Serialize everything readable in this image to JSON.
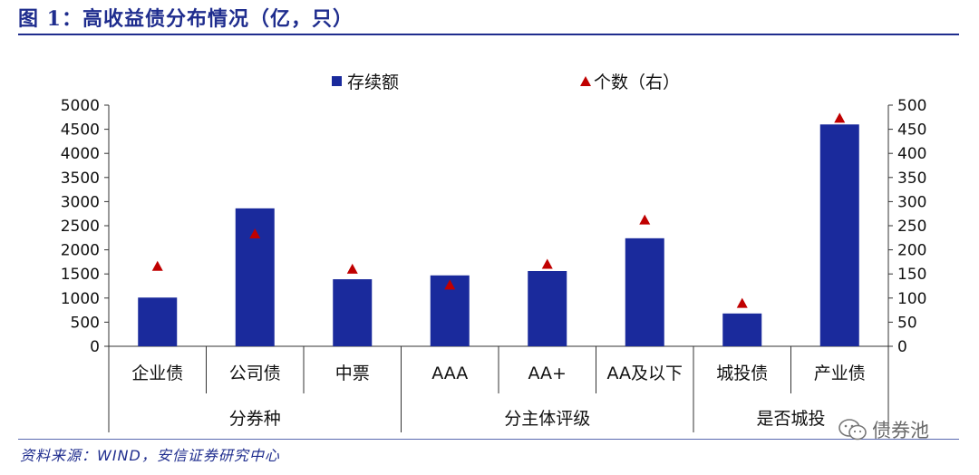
{
  "header": {
    "title": "图 1：高收益债分布情况（亿，只）"
  },
  "footer": {
    "source": "资料来源：WIND，安信证券研究中心"
  },
  "watermark": {
    "text": "债券池",
    "icon": "wechat-icon"
  },
  "colors": {
    "bar": "#1a2a9c",
    "marker": "#c00000",
    "title": "#1f2d8e"
  },
  "chart_data": {
    "type": "bar",
    "categories": [
      "企业债",
      "公司债",
      "中票",
      "AAA",
      "AA+",
      "AA及以下",
      "城投债",
      "产业债"
    ],
    "groups": [
      {
        "label": "分券种",
        "count": 3
      },
      {
        "label": "分主体评级",
        "count": 3
      },
      {
        "label": "是否城投",
        "count": 2
      }
    ],
    "series": [
      {
        "name": "存续额",
        "axis": "left",
        "kind": "bar",
        "values": [
          1010,
          2860,
          1390,
          1470,
          1560,
          2240,
          680,
          4600
        ]
      },
      {
        "name": "个数（右）",
        "axis": "right",
        "kind": "triangle",
        "values": [
          166,
          233,
          160,
          127,
          170,
          262,
          89,
          473
        ]
      }
    ],
    "ylim_left": [
      0,
      5000
    ],
    "yticks_left": [
      0,
      500,
      1000,
      1500,
      2000,
      2500,
      3000,
      3500,
      4000,
      4500,
      5000
    ],
    "ylim_right": [
      0,
      500
    ],
    "yticks_right": [
      0,
      50,
      100,
      150,
      200,
      250,
      300,
      350,
      400,
      450,
      500
    ],
    "legend_position": "top"
  }
}
